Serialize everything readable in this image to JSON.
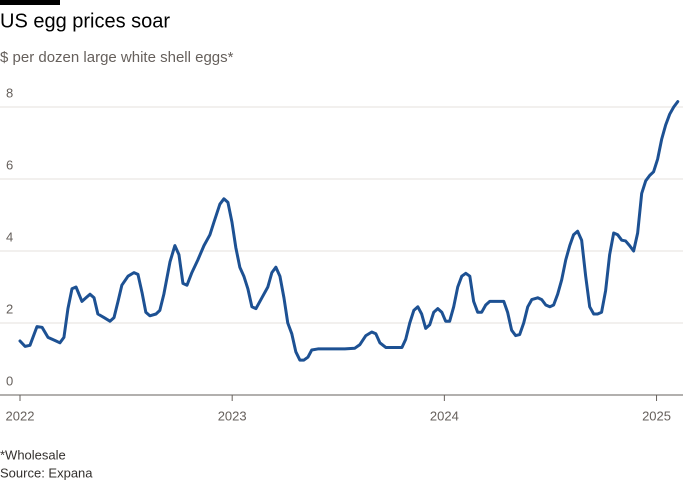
{
  "chart_data": {
    "type": "line",
    "title": "US egg prices soar",
    "subtitle": "$ per dozen large white shell eggs*",
    "note": "*Wholesale",
    "source": "Source: Expana",
    "x": [
      2022.0,
      2022.024,
      2022.047,
      2022.08,
      2022.104,
      2022.132,
      2022.17,
      2022.188,
      2022.207,
      2022.226,
      2022.245,
      2022.264,
      2022.292,
      2022.311,
      2022.33,
      2022.349,
      2022.367,
      2022.396,
      2022.424,
      2022.443,
      2022.462,
      2022.48,
      2022.509,
      2022.537,
      2022.556,
      2022.575,
      2022.593,
      2022.612,
      2022.641,
      2022.659,
      2022.678,
      2022.707,
      2022.73,
      2022.749,
      2022.768,
      2022.787,
      2022.81,
      2022.838,
      2022.867,
      2022.895,
      2022.914,
      2022.942,
      2022.961,
      2022.98,
      2022.999,
      2023.017,
      2023.036,
      2023.055,
      2023.074,
      2023.093,
      2023.112,
      2023.14,
      2023.168,
      2023.187,
      2023.206,
      2023.225,
      2023.244,
      2023.262,
      2023.281,
      2023.3,
      2023.319,
      2023.338,
      2023.357,
      2023.375,
      2023.404,
      2023.46,
      2023.531,
      2023.578,
      2023.602,
      2023.63,
      2023.658,
      2023.677,
      2023.696,
      2023.724,
      2023.771,
      2023.8,
      2023.818,
      2023.837,
      2023.856,
      2023.875,
      2023.893,
      2023.912,
      2023.931,
      2023.95,
      2023.969,
      2023.988,
      2024.006,
      2024.025,
      2024.044,
      2024.063,
      2024.082,
      2024.101,
      2024.12,
      2024.138,
      2024.157,
      2024.176,
      2024.195,
      2024.214,
      2024.242,
      2024.28,
      2024.298,
      2024.317,
      2024.336,
      2024.355,
      2024.374,
      2024.393,
      2024.412,
      2024.44,
      2024.459,
      2024.478,
      2024.497,
      2024.515,
      2024.534,
      2024.553,
      2024.572,
      2024.591,
      2024.609,
      2024.628,
      2024.647,
      2024.666,
      2024.685,
      2024.704,
      2024.722,
      2024.741,
      2024.76,
      2024.779,
      2024.798,
      2024.817,
      2024.836,
      2024.854,
      2024.873,
      2024.892,
      2024.911,
      2024.93,
      2024.949,
      2024.968,
      2024.986,
      2025.005,
      2025.024,
      2025.043,
      2025.062,
      2025.081,
      2025.1
    ],
    "series": [
      {
        "color": "#1d5193",
        "values": [
          1.5,
          1.35,
          1.38,
          1.9,
          1.88,
          1.6,
          1.5,
          1.45,
          1.6,
          2.4,
          2.95,
          3.0,
          2.6,
          2.7,
          2.8,
          2.7,
          2.25,
          2.15,
          2.05,
          2.15,
          2.6,
          3.05,
          3.3,
          3.4,
          3.35,
          2.85,
          2.3,
          2.2,
          2.25,
          2.35,
          2.8,
          3.7,
          4.15,
          3.9,
          3.1,
          3.05,
          3.4,
          3.75,
          4.15,
          4.45,
          4.8,
          5.3,
          5.45,
          5.35,
          4.8,
          4.1,
          3.55,
          3.3,
          2.95,
          2.45,
          2.4,
          2.7,
          3.0,
          3.4,
          3.55,
          3.3,
          2.7,
          2.0,
          1.7,
          1.2,
          0.97,
          0.97,
          1.05,
          1.25,
          1.28,
          1.28,
          1.28,
          1.3,
          1.4,
          1.65,
          1.75,
          1.7,
          1.45,
          1.32,
          1.32,
          1.32,
          1.55,
          2.0,
          2.35,
          2.45,
          2.25,
          1.85,
          1.95,
          2.3,
          2.4,
          2.3,
          2.05,
          2.05,
          2.45,
          3.0,
          3.3,
          3.38,
          3.3,
          2.6,
          2.3,
          2.3,
          2.5,
          2.6,
          2.6,
          2.6,
          2.3,
          1.8,
          1.65,
          1.68,
          2.0,
          2.45,
          2.65,
          2.7,
          2.65,
          2.5,
          2.45,
          2.5,
          2.8,
          3.2,
          3.75,
          4.15,
          4.45,
          4.55,
          4.3,
          3.3,
          2.45,
          2.25,
          2.25,
          2.3,
          2.9,
          3.9,
          4.5,
          4.45,
          4.3,
          4.28,
          4.15,
          4.0,
          4.5,
          5.6,
          5.95,
          6.1,
          6.2,
          6.55,
          7.1,
          7.5,
          7.8,
          8.0,
          8.15
        ]
      }
    ],
    "xlim": [
      2022,
      2025.12
    ],
    "xticks": [
      2022,
      2023,
      2024,
      2025
    ],
    "ylim": [
      0,
      8.3
    ],
    "yticks": [
      0,
      2,
      4,
      6,
      8
    ],
    "grid": true
  }
}
